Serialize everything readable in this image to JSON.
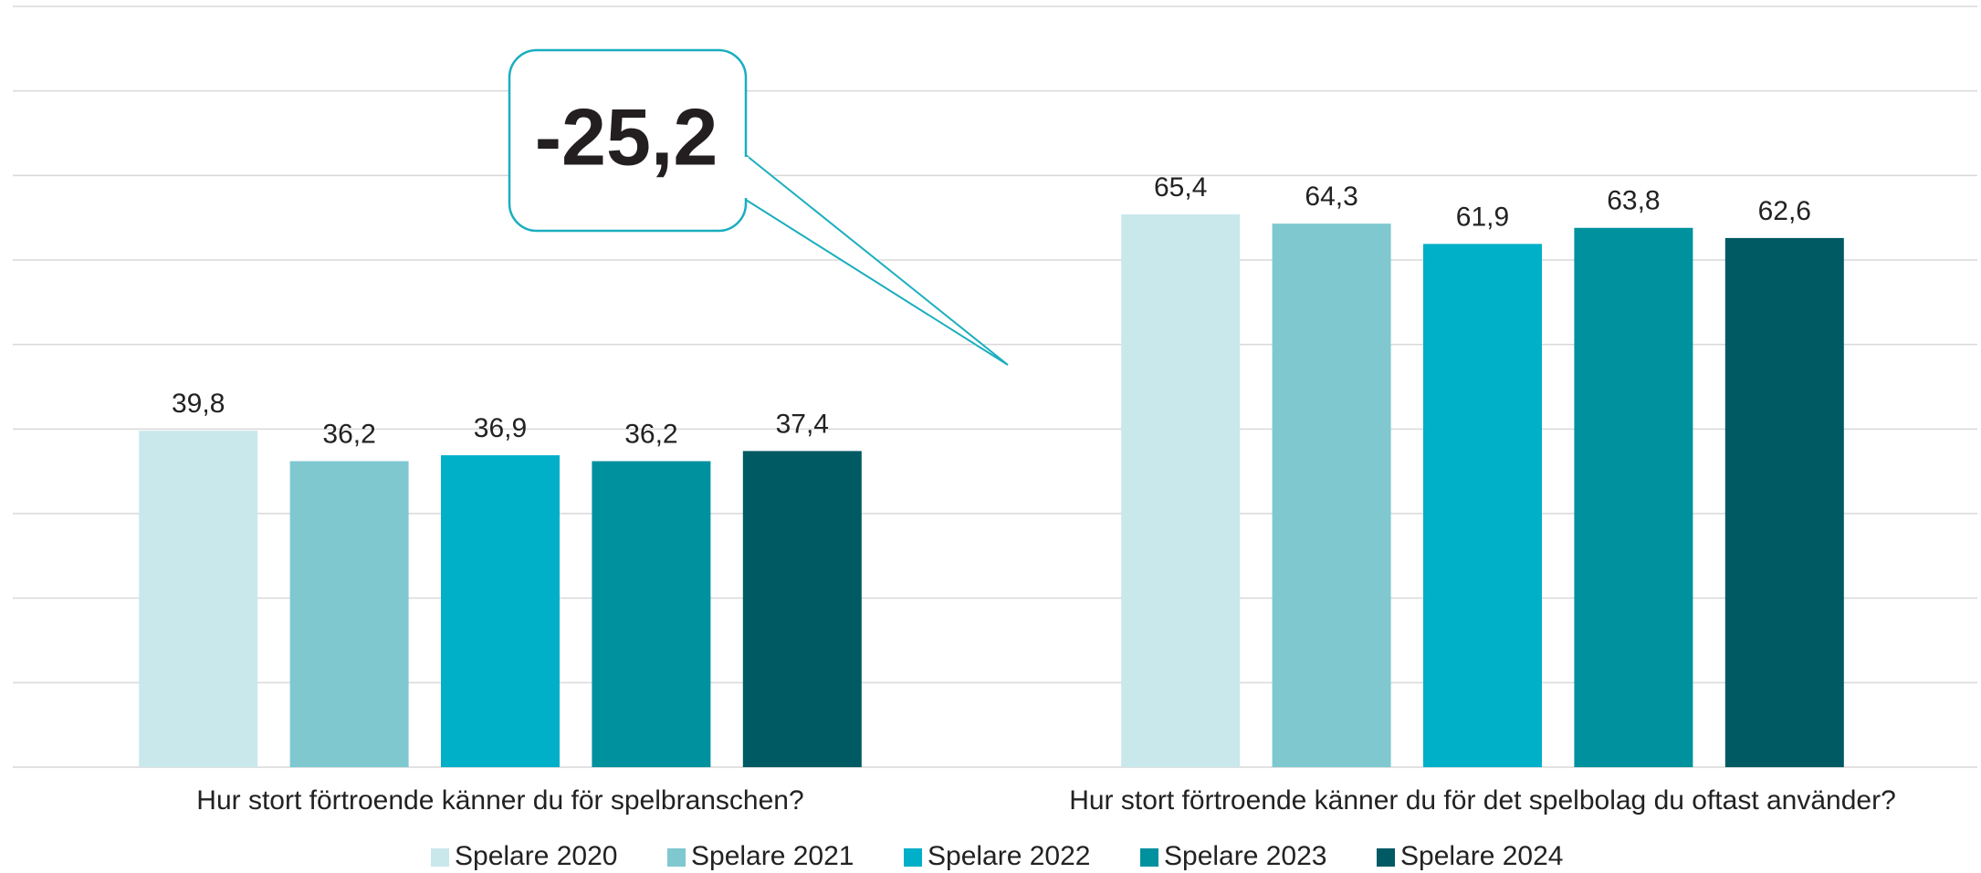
{
  "chart_data": {
    "type": "bar",
    "categories": [
      "Hur stort förtroende känner du för spelbranschen?",
      "Hur stort förtroende känner du för det spelbolag du oftast använder?"
    ],
    "series": [
      {
        "name": "Spelare 2020",
        "color": "#c9e8ec",
        "values": [
          39.8,
          65.4
        ],
        "value_labels": [
          "39,8",
          "65,4"
        ]
      },
      {
        "name": "Spelare 2021",
        "color": "#7fc8d0",
        "values": [
          36.2,
          64.3
        ],
        "value_labels": [
          "36,2",
          "64,3"
        ]
      },
      {
        "name": "Spelare 2022",
        "color": "#00afc8",
        "values": [
          36.9,
          61.9
        ],
        "value_labels": [
          "36,9",
          "61,9"
        ]
      },
      {
        "name": "Spelare 2023",
        "color": "#00919f",
        "values": [
          36.2,
          63.8
        ],
        "value_labels": [
          "36,2",
          "63,8"
        ]
      },
      {
        "name": "Spelare 2024",
        "color": "#005a63",
        "values": [
          37.4,
          62.6
        ],
        "value_labels": [
          "37,4",
          "62,6"
        ]
      }
    ],
    "ylim": [
      0,
      90
    ],
    "yticks": [
      0,
      10,
      20,
      30,
      40,
      50,
      60,
      70,
      80,
      90
    ],
    "grid": true,
    "legend": "bottom",
    "annotation": "-25,2"
  }
}
